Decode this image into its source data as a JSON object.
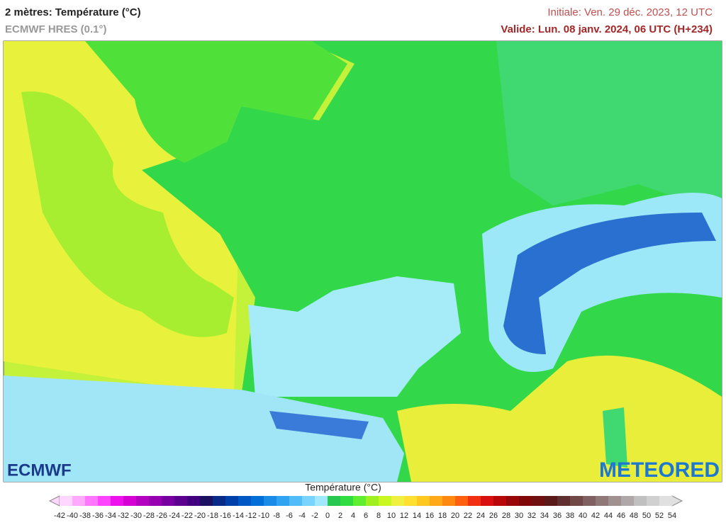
{
  "header": {
    "title": "2 mètres: Température (°C)",
    "model": "ECMWF HRES (0.1°)",
    "initial": "Initiale: Ven. 29 déc. 2023, 12 UTC",
    "valid": "Valide: Lun. 08 janv. 2024, 06 UTC (H+234)"
  },
  "logos": {
    "left": "ECMWF",
    "right": "METEORED"
  },
  "legend": {
    "title": "Température (°C)",
    "ticks": [
      -42,
      -40,
      -38,
      -36,
      -34,
      -32,
      -30,
      -28,
      -26,
      -24,
      -22,
      -20,
      -18,
      -16,
      -14,
      -12,
      -10,
      -8,
      -6,
      -4,
      -2,
      0,
      2,
      4,
      6,
      8,
      10,
      12,
      14,
      16,
      18,
      20,
      22,
      24,
      26,
      28,
      30,
      32,
      34,
      36,
      38,
      40,
      42,
      44,
      46,
      48,
      50,
      52,
      54
    ],
    "colors": [
      "#ffd6ff",
      "#ffaaff",
      "#ff77ff",
      "#ff44ff",
      "#ee11ee",
      "#d400d4",
      "#b400c0",
      "#9600b0",
      "#7800a0",
      "#5c0090",
      "#420080",
      "#1c1060",
      "#0a2a88",
      "#0040a8",
      "#0058c4",
      "#0070d8",
      "#1a8ce8",
      "#30a4f0",
      "#50bcf8",
      "#78d4fc",
      "#a0e8ff",
      "#28c850",
      "#30dd40",
      "#60ee30",
      "#a0f020",
      "#c8f820",
      "#f0f040",
      "#ffe030",
      "#ffc820",
      "#ffa818",
      "#ff8810",
      "#ff6010",
      "#f03010",
      "#d81010",
      "#b80808",
      "#980808",
      "#800808",
      "#701010",
      "#5a1a1a",
      "#603030",
      "#704848",
      "#806060",
      "#907878",
      "#a09090",
      "#b0a8a8",
      "#c0c0c0",
      "#d0d0d0",
      "#e0e0e0"
    ]
  }
}
